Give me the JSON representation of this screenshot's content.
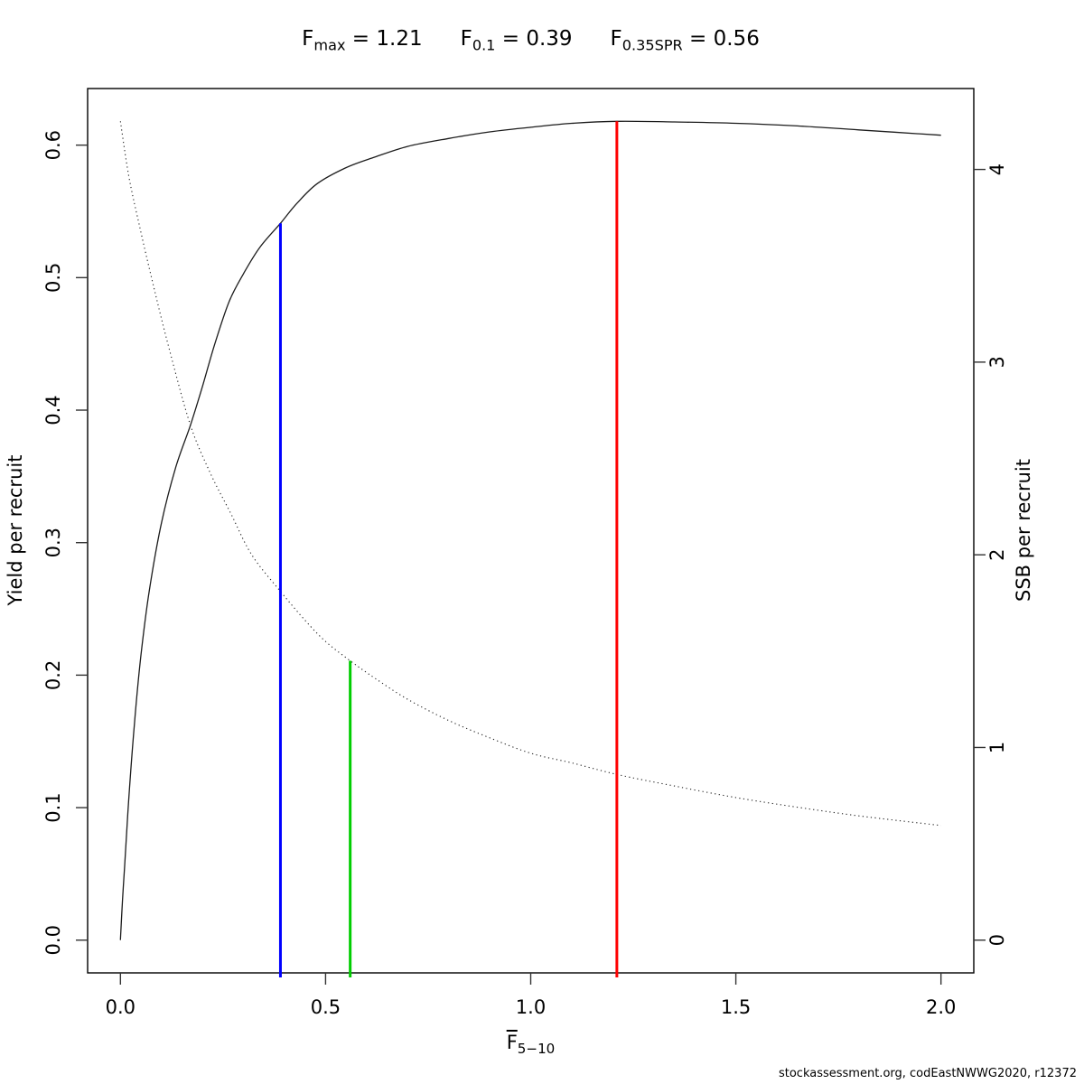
{
  "title": {
    "parts": [
      {
        "base": "F",
        "sub": "max",
        "value": "1.21"
      },
      {
        "base": "F",
        "sub": "0.1",
        "value": "0.39"
      },
      {
        "base": "F",
        "sub": "0.35SPR",
        "value": "0.56"
      }
    ],
    "plain": "Fmax = 1.21    F0.1 = 0.39    F0.35SPR = 0.56"
  },
  "footer": "stockassessment.org, codEastNWWG2020, r12372",
  "chart_data": {
    "type": "line",
    "title": "Fmax = 1.21  F0.1 = 0.39  F0.35SPR = 0.56",
    "xlabel": {
      "base": "F",
      "overline": true,
      "sub": "5−10"
    },
    "ylabel_left": "Yield per recruit",
    "ylabel_right": "SSB per recruit",
    "xlim": [
      0,
      2
    ],
    "ylim_left": [
      0,
      0.618
    ],
    "ylim_right": [
      0,
      4.25
    ],
    "x_ticks": [
      {
        "v": 0,
        "label": "0.0"
      },
      {
        "v": 0.5,
        "label": "0.5"
      },
      {
        "v": 1.0,
        "label": "1.0"
      },
      {
        "v": 1.5,
        "label": "1.5"
      },
      {
        "v": 2.0,
        "label": "2.0"
      }
    ],
    "left_ticks": [
      {
        "v": 0.0,
        "label": "0.0"
      },
      {
        "v": 0.1,
        "label": "0.1"
      },
      {
        "v": 0.2,
        "label": "0.2"
      },
      {
        "v": 0.3,
        "label": "0.3"
      },
      {
        "v": 0.4,
        "label": "0.4"
      },
      {
        "v": 0.5,
        "label": "0.5"
      },
      {
        "v": 0.6,
        "label": "0.6"
      }
    ],
    "right_ticks": [
      {
        "v": 0,
        "label": "0"
      },
      {
        "v": 1,
        "label": "1"
      },
      {
        "v": 2,
        "label": "2"
      },
      {
        "v": 3,
        "label": "3"
      },
      {
        "v": 4,
        "label": "4"
      }
    ],
    "grid": false,
    "legend": "none",
    "series": [
      {
        "id": "yield",
        "name": "Yield per recruit",
        "axis": "left",
        "line": "solid",
        "color": "#1c1c1c",
        "points": [
          [
            0,
            0
          ],
          [
            0.005,
            0.03
          ],
          [
            0.01,
            0.055
          ],
          [
            0.02,
            0.105
          ],
          [
            0.034,
            0.163
          ],
          [
            0.05,
            0.215
          ],
          [
            0.07,
            0.263
          ],
          [
            0.1,
            0.315
          ],
          [
            0.135,
            0.357
          ],
          [
            0.171,
            0.389
          ],
          [
            0.2,
            0.418
          ],
          [
            0.23,
            0.45
          ],
          [
            0.265,
            0.482
          ],
          [
            0.3,
            0.503
          ],
          [
            0.34,
            0.523
          ],
          [
            0.39,
            0.541
          ],
          [
            0.43,
            0.556
          ],
          [
            0.48,
            0.571
          ],
          [
            0.55,
            0.583
          ],
          [
            0.62,
            0.591
          ],
          [
            0.7,
            0.599
          ],
          [
            0.8,
            0.605
          ],
          [
            0.9,
            0.61
          ],
          [
            1.0,
            0.6135
          ],
          [
            1.1,
            0.6165
          ],
          [
            1.21,
            0.618
          ],
          [
            1.35,
            0.6175
          ],
          [
            1.5,
            0.6165
          ],
          [
            1.65,
            0.6145
          ],
          [
            1.8,
            0.6115
          ],
          [
            2.0,
            0.6075
          ]
        ]
      },
      {
        "id": "ssb",
        "name": "SSB per recruit",
        "axis": "right",
        "line": "dotted",
        "color": "#1c1c1c",
        "points": [
          [
            0,
            4.25
          ],
          [
            0.02,
            3.97
          ],
          [
            0.045,
            3.72
          ],
          [
            0.08,
            3.4
          ],
          [
            0.12,
            3.06
          ],
          [
            0.171,
            2.67
          ],
          [
            0.22,
            2.42
          ],
          [
            0.27,
            2.21
          ],
          [
            0.32,
            2.0
          ],
          [
            0.39,
            1.81
          ],
          [
            0.45,
            1.66
          ],
          [
            0.5,
            1.55
          ],
          [
            0.56,
            1.45
          ],
          [
            0.62,
            1.36
          ],
          [
            0.7,
            1.25
          ],
          [
            0.8,
            1.14
          ],
          [
            0.9,
            1.05
          ],
          [
            1.0,
            0.97
          ],
          [
            1.1,
            0.92
          ],
          [
            1.21,
            0.86
          ],
          [
            1.35,
            0.8
          ],
          [
            1.5,
            0.74
          ],
          [
            1.65,
            0.69
          ],
          [
            1.8,
            0.645
          ],
          [
            2.0,
            0.595
          ]
        ]
      }
    ],
    "reference_lines": [
      {
        "id": "f01-line",
        "name": "F0.1 = 0.39",
        "x": 0.39,
        "series": "yield",
        "color": "#0000ff"
      },
      {
        "id": "f035spr-line",
        "name": "F0.35SPR = 0.56",
        "x": 0.56,
        "series": "ssb",
        "color": "#00cd00"
      },
      {
        "id": "fmax-line",
        "name": "Fmax = 1.21",
        "x": 1.21,
        "series": "yield",
        "color": "#ff0000"
      }
    ]
  }
}
